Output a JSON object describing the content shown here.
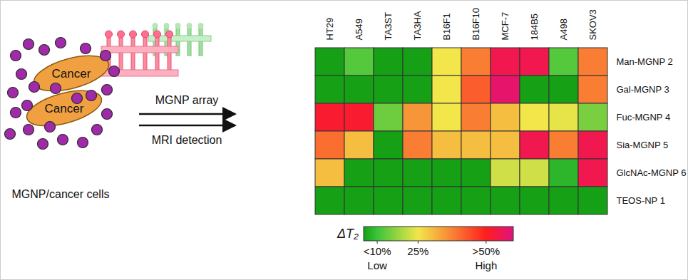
{
  "chart_data": {
    "type": "heatmap",
    "x_categories": [
      "HT29",
      "A549",
      "TA3ST",
      "TA3HA",
      "B16F1",
      "B16F10",
      "MCF-7",
      "184B5",
      "A498",
      "SKOV3"
    ],
    "y_categories": [
      "Man-MGNP 2",
      "Gal-MGNP 3",
      "Fuc-MGNP 4",
      "Sia-MGNP 5",
      "GlcNAc-MGNP 6",
      "TEOS-NP 1"
    ],
    "cells": [
      [
        5,
        12,
        5,
        5,
        25,
        38,
        55,
        55,
        12,
        38
      ],
      [
        5,
        5,
        5,
        5,
        25,
        42,
        58,
        5,
        5,
        38
      ],
      [
        52,
        52,
        14,
        35,
        25,
        38,
        30,
        25,
        24,
        15
      ],
      [
        40,
        30,
        5,
        38,
        30,
        30,
        30,
        55,
        38,
        55
      ],
      [
        30,
        5,
        5,
        5,
        5,
        5,
        22,
        22,
        8,
        55
      ],
      [
        5,
        5,
        5,
        5,
        5,
        5,
        5,
        5,
        5,
        5
      ]
    ],
    "colorbar": {
      "label": "ΔT₂",
      "range": [
        5,
        60
      ],
      "ticks": [
        {
          "value": 10,
          "label": "<10%"
        },
        {
          "value": 25,
          "label": "25%"
        },
        {
          "value": 50,
          "label": ">50%"
        }
      ],
      "low_label": "Low",
      "high_label": "High"
    }
  },
  "schematic": {
    "cell_labels": [
      "Cancer",
      "Cancer"
    ],
    "caption": "MGNP/cancer cells",
    "arrow_labels": [
      "MGNP array",
      "MRI detection"
    ]
  }
}
